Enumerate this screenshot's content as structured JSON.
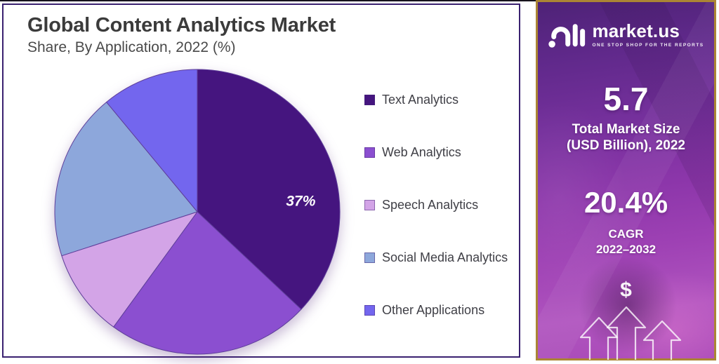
{
  "header": {
    "title": "Global Content Analytics Market",
    "subtitle": "Share, By Application, 2022 (%)"
  },
  "chart_data": {
    "type": "pie",
    "title": "Global Content Analytics Market",
    "subtitle": "Share, By Application, 2022 (%)",
    "units": "%",
    "start_angle_deg": 0,
    "direction": "clockwise",
    "legend_position": "right",
    "slices": [
      {
        "name": "Text Analytics",
        "value": 37,
        "color": "#45157f",
        "label": "37%",
        "label_angle_deg": 84,
        "label_radius_frac": 0.73
      },
      {
        "name": "Web Analytics",
        "value": 23,
        "color": "#8b4fd0",
        "label": ""
      },
      {
        "name": "Speech Analytics",
        "value": 10,
        "color": "#d3a4e7",
        "label": ""
      },
      {
        "name": "Social Media Analytics",
        "value": 19,
        "color": "#8da7db",
        "label": ""
      },
      {
        "name": "Other Applications",
        "value": 11,
        "color": "#7366ee",
        "label": ""
      }
    ]
  },
  "sidebar": {
    "brand": {
      "name": "market.us",
      "tagline": "ONE STOP SHOP FOR THE REPORTS",
      "logo_icon": "marketus-swirl-logo-icon"
    },
    "stat_market_size": {
      "value": "5.7",
      "label_line1": "Total Market Size",
      "label_line2": "(USD Billion), 2022"
    },
    "stat_cagr": {
      "value": "20.4%",
      "label_line1": "CAGR",
      "label_line2": "2022–2032"
    },
    "dollar_symbol": "$",
    "icons": {
      "currency": "dollar-icon",
      "growth": "three-up-arrows-icon"
    }
  },
  "colors": {
    "panel_border": "#3a2170",
    "sidebar_border": "#ab8534",
    "slice_stroke": "#5f3f9a",
    "title_text": "#3b3b3b",
    "pie_label_text": "#ffffff"
  }
}
